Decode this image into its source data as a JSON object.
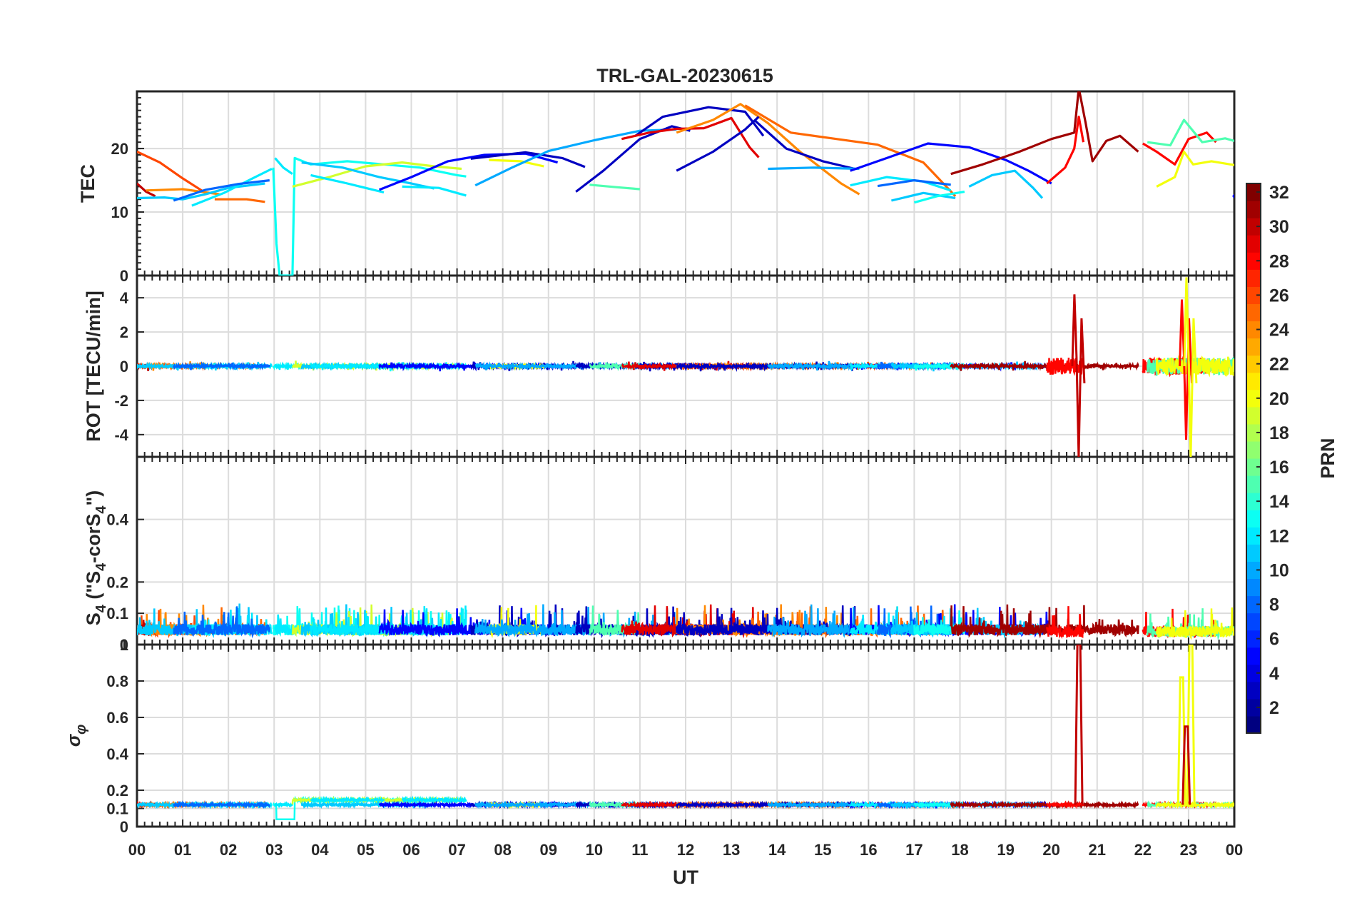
{
  "chart_data": {
    "type": "line",
    "title": "TRL-GAL-20230615",
    "xlabel": "UT",
    "x_ticks": [
      "00",
      "01",
      "02",
      "03",
      "04",
      "05",
      "06",
      "07",
      "08",
      "09",
      "10",
      "11",
      "12",
      "13",
      "14",
      "15",
      "16",
      "17",
      "18",
      "19",
      "20",
      "21",
      "22",
      "23",
      "00"
    ],
    "xlim": [
      0,
      24
    ],
    "colorbar": {
      "label": "PRN",
      "colormap": "jet",
      "range": [
        1,
        32
      ],
      "ticks": [
        "2",
        "4",
        "6",
        "8",
        "10",
        "12",
        "14",
        "16",
        "18",
        "20",
        "22",
        "24",
        "26",
        "28",
        "30",
        "32"
      ]
    },
    "panels": [
      {
        "id": "tec",
        "ylabel": "TEC",
        "ylim": [
          0,
          29
        ],
        "yticks": [
          "0",
          "10",
          "20"
        ],
        "ytick_values": [
          0,
          10,
          20
        ]
      },
      {
        "id": "rot",
        "ylabel": "ROT [TECU/min]",
        "ylim": [
          -5.3,
          5.3
        ],
        "yticks": [
          "-4",
          "-2",
          "0",
          "2",
          "4"
        ],
        "ytick_values": [
          -4,
          -2,
          0,
          2,
          4
        ]
      },
      {
        "id": "s4",
        "ylabel": "S4 (\"S4-corS4\")",
        "ylabel_parts": {
          "main": "S",
          "sub1": "4",
          "mid": " (\"S",
          "sub2": "4",
          "mid2": "-corS",
          "sub3": "4",
          "end": "\")"
        },
        "ylim": [
          0,
          0.6
        ],
        "yticks": [
          "0",
          "0.1",
          "0.2",
          "0.4"
        ],
        "ytick_values": [
          0,
          0.1,
          0.2,
          0.4
        ]
      },
      {
        "id": "sigma",
        "ylabel": "σφ",
        "ylabel_parts": {
          "main": "σ",
          "sub": "φ"
        },
        "ylim": [
          0,
          1
        ],
        "yticks": [
          "0",
          "0.1",
          "0.2",
          "0.4",
          "0.6",
          "0.8",
          "1"
        ],
        "ytick_values": [
          0,
          0.1,
          0.2,
          0.4,
          0.6,
          0.8,
          1
        ]
      }
    ],
    "series": [
      {
        "prn": 26,
        "tec": [
          [
            0,
            19.5
          ],
          [
            0.5,
            17.8
          ],
          [
            1,
            15.3
          ],
          [
            1.5,
            13
          ]
        ]
      },
      {
        "prn": 30,
        "tec": [
          [
            0,
            14.5
          ],
          [
            0.2,
            13.2
          ],
          [
            0.4,
            12.5
          ]
        ]
      },
      {
        "prn": 24,
        "tec": [
          [
            0.2,
            13.4
          ],
          [
            1,
            13.6
          ],
          [
            1.8,
            12.8
          ]
        ]
      },
      {
        "prn": 25,
        "tec": [
          [
            1.7,
            12
          ],
          [
            2.4,
            12
          ],
          [
            2.8,
            11.6
          ]
        ]
      },
      {
        "prn": 11,
        "tec": [
          [
            0,
            12.2
          ],
          [
            0.6,
            12.3
          ],
          [
            1,
            12
          ],
          [
            1.5,
            12.8
          ],
          [
            2,
            13.8
          ],
          [
            2.8,
            14.5
          ]
        ]
      },
      {
        "prn": 12,
        "tec": [
          [
            1.2,
            11
          ],
          [
            1.9,
            13
          ],
          [
            2.5,
            15.2
          ],
          [
            2.95,
            16.8
          ]
        ]
      },
      {
        "prn": 8,
        "tec": [
          [
            0.8,
            11.8
          ],
          [
            1.5,
            13.5
          ],
          [
            2.2,
            14.4
          ],
          [
            2.9,
            15
          ]
        ]
      },
      {
        "prn": 13,
        "tec": [
          [
            2.98,
            17
          ],
          [
            3.05,
            5
          ],
          [
            3.12,
            0
          ],
          [
            3.4,
            0
          ],
          [
            3.45,
            18.5
          ],
          [
            3.8,
            17.5
          ],
          [
            4.6,
            18
          ],
          [
            5.4,
            17.5
          ],
          [
            6.2,
            17
          ],
          [
            7,
            15.8
          ],
          [
            7.2,
            15.6
          ]
        ]
      },
      {
        "prn": 12,
        "tec": [
          [
            3.02,
            18.5
          ],
          [
            3.2,
            17
          ],
          [
            3.4,
            16
          ]
        ]
      },
      {
        "prn": 19,
        "tec": [
          [
            3.4,
            14
          ],
          [
            4.2,
            15.5
          ],
          [
            5,
            17.2
          ],
          [
            5.8,
            17.8
          ],
          [
            6.5,
            17.2
          ],
          [
            7.1,
            16.8
          ]
        ]
      },
      {
        "prn": 11,
        "tec": [
          [
            3.6,
            17.8
          ],
          [
            4.5,
            17
          ],
          [
            5.3,
            15.5
          ],
          [
            6,
            14.5
          ],
          [
            6.5,
            13.7
          ]
        ]
      },
      {
        "prn": 12,
        "tec": [
          [
            3.8,
            15.8
          ],
          [
            4.6,
            14.5
          ],
          [
            5.4,
            13.1
          ]
        ]
      },
      {
        "prn": 12,
        "tec": [
          [
            5.8,
            14
          ],
          [
            6.6,
            13.8
          ],
          [
            7.2,
            12.6
          ]
        ]
      },
      {
        "prn": 5,
        "tec": [
          [
            5.3,
            13.5
          ],
          [
            6,
            15.5
          ],
          [
            6.8,
            18
          ],
          [
            7.6,
            19
          ],
          [
            8.5,
            19.2
          ],
          [
            9.2,
            17.8
          ]
        ]
      },
      {
        "prn": 3,
        "tec": [
          [
            7.3,
            18.4
          ],
          [
            8.5,
            19.4
          ],
          [
            9.3,
            18.5
          ],
          [
            9.8,
            17.1
          ]
        ]
      },
      {
        "prn": 20,
        "tec": [
          [
            7.7,
            18.2
          ],
          [
            8.4,
            18
          ],
          [
            8.9,
            17.2
          ]
        ]
      },
      {
        "prn": 10,
        "tec": [
          [
            7.4,
            14.2
          ],
          [
            8.2,
            17
          ],
          [
            9,
            19.6
          ],
          [
            10,
            21.3
          ],
          [
            11,
            22.8
          ],
          [
            11.8,
            23
          ]
        ]
      },
      {
        "prn": 3,
        "tec": [
          [
            9.6,
            13.2
          ],
          [
            10.2,
            16.5
          ],
          [
            11,
            21.5
          ],
          [
            11.7,
            23.5
          ],
          [
            12.1,
            22.8
          ]
        ]
      },
      {
        "prn": 15,
        "tec": [
          [
            9.9,
            14.3
          ],
          [
            10.5,
            13.9
          ],
          [
            11,
            13.6
          ]
        ]
      },
      {
        "prn": 3,
        "tec": [
          [
            10.9,
            22
          ],
          [
            11.5,
            25
          ],
          [
            12.5,
            26.5
          ],
          [
            13.3,
            25.8
          ],
          [
            13.7,
            22
          ]
        ]
      },
      {
        "prn": 29,
        "tec": [
          [
            10.6,
            21.5
          ],
          [
            11.2,
            22.5
          ],
          [
            11.8,
            23.1
          ],
          [
            12.4,
            23.2
          ],
          [
            13,
            24.8
          ],
          [
            13.4,
            20.2
          ],
          [
            13.6,
            18.6
          ]
        ]
      },
      {
        "prn": 24,
        "tec": [
          [
            11.8,
            22.5
          ],
          [
            12.6,
            24.5
          ],
          [
            13.2,
            27
          ],
          [
            13.8,
            24
          ],
          [
            14.5,
            19.5
          ],
          [
            15.4,
            14.5
          ],
          [
            15.8,
            12.8
          ]
        ]
      },
      {
        "prn": 25,
        "tec": [
          [
            13.3,
            26.8
          ],
          [
            14.3,
            22.5
          ],
          [
            15.2,
            21.6
          ],
          [
            16.2,
            20.6
          ],
          [
            17.2,
            17.8
          ],
          [
            17.9,
            12.5
          ]
        ]
      },
      {
        "prn": 3,
        "tec": [
          [
            11.8,
            16.5
          ],
          [
            12.6,
            19.5
          ],
          [
            13.3,
            23
          ],
          [
            13.6,
            25
          ]
        ]
      },
      {
        "prn": 3,
        "tec": [
          [
            13.5,
            24.5
          ],
          [
            14.2,
            20
          ],
          [
            15,
            18
          ],
          [
            15.7,
            16.8
          ]
        ]
      },
      {
        "prn": 10,
        "tec": [
          [
            13.8,
            16.8
          ],
          [
            14.8,
            17
          ],
          [
            15.8,
            16.8
          ]
        ]
      },
      {
        "prn": 5,
        "tec": [
          [
            15.6,
            16.5
          ],
          [
            16.4,
            18.5
          ],
          [
            17.3,
            20.8
          ],
          [
            18.2,
            20.2
          ],
          [
            19,
            18.2
          ],
          [
            19.5,
            16.5
          ],
          [
            20,
            14.5
          ]
        ]
      },
      {
        "prn": 12,
        "tec": [
          [
            15.6,
            14.2
          ],
          [
            16.4,
            15.5
          ],
          [
            17.2,
            14.8
          ],
          [
            17.8,
            13.4
          ]
        ]
      },
      {
        "prn": 8,
        "tec": [
          [
            16.2,
            14.1
          ],
          [
            17,
            15
          ],
          [
            17.8,
            14.3
          ]
        ]
      },
      {
        "prn": 11,
        "tec": [
          [
            16.5,
            11.8
          ],
          [
            17.2,
            13
          ],
          [
            17.9,
            12.2
          ]
        ]
      },
      {
        "prn": 13,
        "tec": [
          [
            17,
            11.5
          ],
          [
            17.5,
            12.5
          ],
          [
            18.1,
            13.2
          ]
        ]
      },
      {
        "prn": 11,
        "tec": [
          [
            18.2,
            14
          ],
          [
            18.7,
            15.8
          ],
          [
            19.2,
            16.5
          ],
          [
            19.6,
            13.8
          ],
          [
            19.8,
            12.2
          ]
        ]
      },
      {
        "prn": 31,
        "tec": [
          [
            17.8,
            16
          ],
          [
            18.5,
            17.5
          ],
          [
            19.3,
            19.5
          ],
          [
            20,
            21.5
          ],
          [
            20.5,
            22.5
          ],
          [
            20.6,
            29.5
          ],
          [
            20.75,
            24
          ],
          [
            20.9,
            18
          ],
          [
            21.2,
            21.2
          ],
          [
            21.5,
            22
          ],
          [
            21.9,
            19.5
          ]
        ]
      },
      {
        "prn": 28,
        "tec": [
          [
            19.9,
            14.5
          ],
          [
            20.3,
            17
          ],
          [
            20.5,
            20
          ],
          [
            20.6,
            25
          ],
          [
            20.7,
            21
          ]
        ]
      },
      {
        "prn": 28,
        "tec": [
          [
            22,
            20.8
          ],
          [
            22.3,
            19.5
          ],
          [
            22.7,
            17.5
          ],
          [
            23,
            21.5
          ],
          [
            23.4,
            22.5
          ],
          [
            23.6,
            21
          ]
        ]
      },
      {
        "prn": 15,
        "tec": [
          [
            22.1,
            21
          ],
          [
            22.6,
            20.5
          ],
          [
            22.9,
            24.5
          ],
          [
            23.3,
            21
          ],
          [
            23.8,
            21.6
          ],
          [
            24,
            21.2
          ]
        ]
      },
      {
        "prn": 20,
        "tec": [
          [
            22.3,
            14
          ],
          [
            22.7,
            15.5
          ],
          [
            22.9,
            19.5
          ],
          [
            23.1,
            17.5
          ],
          [
            23.5,
            18
          ],
          [
            24,
            17.4
          ]
        ]
      },
      {
        "prn": 5,
        "tec": [
          [
            24,
            12.5
          ]
        ]
      }
    ],
    "rot_highlights": [
      {
        "prn": 30,
        "t": 20.55,
        "peak": 4.2,
        "trough": -5.3
      },
      {
        "prn": 28,
        "t": 22.9,
        "peak": 3.9,
        "trough": -4.3
      },
      {
        "prn": 20,
        "t": 23.0,
        "peak": 5.2,
        "trough": -5.3
      }
    ],
    "sigma_spikes": [
      {
        "prn": 30,
        "t": 20.6,
        "value": 1.0
      },
      {
        "prn": 20,
        "t": 22.85,
        "value": 0.82
      },
      {
        "prn": 20,
        "t": 23.05,
        "value": 1.0
      },
      {
        "prn": 30,
        "t": 22.95,
        "value": 0.55
      }
    ]
  }
}
